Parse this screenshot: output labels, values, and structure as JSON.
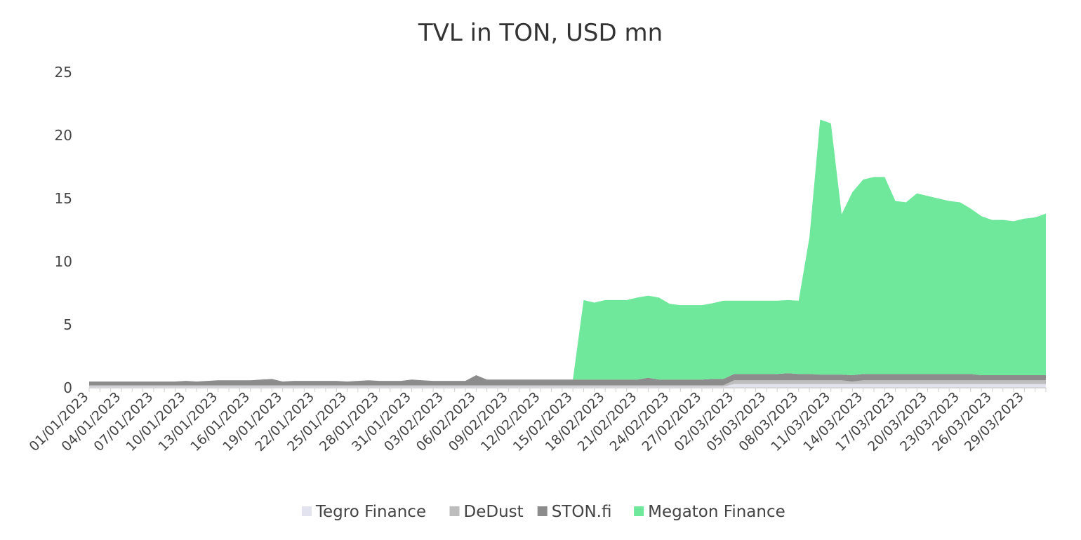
{
  "chart_data": {
    "type": "area",
    "stacked": true,
    "title": "TVL in TON, USD mn",
    "xlabel": "",
    "ylabel": "",
    "ylim": [
      0,
      25
    ],
    "yticks": [
      0,
      5,
      10,
      15,
      20,
      25
    ],
    "grid": false,
    "legend_position": "bottom",
    "x": [
      "01/01/2023",
      "02/01/2023",
      "03/01/2023",
      "04/01/2023",
      "05/01/2023",
      "06/01/2023",
      "07/01/2023",
      "08/01/2023",
      "09/01/2023",
      "10/01/2023",
      "11/01/2023",
      "12/01/2023",
      "13/01/2023",
      "14/01/2023",
      "15/01/2023",
      "16/01/2023",
      "17/01/2023",
      "18/01/2023",
      "19/01/2023",
      "20/01/2023",
      "21/01/2023",
      "22/01/2023",
      "23/01/2023",
      "24/01/2023",
      "25/01/2023",
      "26/01/2023",
      "27/01/2023",
      "28/01/2023",
      "29/01/2023",
      "30/01/2023",
      "31/01/2023",
      "01/02/2023",
      "02/02/2023",
      "03/02/2023",
      "04/02/2023",
      "05/02/2023",
      "06/02/2023",
      "07/02/2023",
      "08/02/2023",
      "09/02/2023",
      "10/02/2023",
      "11/02/2023",
      "12/02/2023",
      "13/02/2023",
      "14/02/2023",
      "15/02/2023",
      "16/02/2023",
      "17/02/2023",
      "18/02/2023",
      "19/02/2023",
      "20/02/2023",
      "21/02/2023",
      "22/02/2023",
      "23/02/2023",
      "24/02/2023",
      "25/02/2023",
      "26/02/2023",
      "27/02/2023",
      "28/02/2023",
      "01/03/2023",
      "02/03/2023",
      "03/03/2023",
      "04/03/2023",
      "05/03/2023",
      "06/03/2023",
      "07/03/2023",
      "08/03/2023",
      "09/03/2023",
      "10/03/2023",
      "11/03/2023",
      "12/03/2023",
      "13/03/2023",
      "14/03/2023",
      "15/03/2023",
      "16/03/2023",
      "17/03/2023",
      "18/03/2023",
      "19/03/2023",
      "20/03/2023",
      "21/03/2023",
      "22/03/2023",
      "23/03/2023",
      "24/03/2023",
      "25/03/2023",
      "26/03/2023",
      "27/03/2023",
      "28/03/2023",
      "29/03/2023",
      "30/03/2023",
      "31/03/2023"
    ],
    "x_tick_labels": [
      "01/01/2023",
      "04/01/2023",
      "07/01/2023",
      "10/01/2023",
      "13/01/2023",
      "16/01/2023",
      "19/01/2023",
      "22/01/2023",
      "25/01/2023",
      "28/01/2023",
      "31/01/2023",
      "03/02/2023",
      "06/02/2023",
      "09/02/2023",
      "12/02/2023",
      "15/02/2023",
      "18/02/2023",
      "21/02/2023",
      "24/02/2023",
      "27/02/2023",
      "02/03/2023",
      "05/03/2023",
      "08/03/2023",
      "11/03/2023",
      "14/03/2023",
      "17/03/2023",
      "20/03/2023",
      "23/03/2023",
      "26/03/2023",
      "29/03/2023"
    ],
    "series": [
      {
        "name": "Tegro Finance",
        "color": "#e3e3ef",
        "values": [
          0.1,
          0.1,
          0.1,
          0.1,
          0.1,
          0.1,
          0.1,
          0.1,
          0.1,
          0.1,
          0.1,
          0.1,
          0.1,
          0.1,
          0.1,
          0.1,
          0.1,
          0.1,
          0.1,
          0.1,
          0.1,
          0.1,
          0.1,
          0.1,
          0.1,
          0.1,
          0.1,
          0.1,
          0.1,
          0.1,
          0.1,
          0.1,
          0.1,
          0.1,
          0.1,
          0.1,
          0.1,
          0.1,
          0.1,
          0.1,
          0.1,
          0.1,
          0.1,
          0.1,
          0.1,
          0.1,
          0.1,
          0.1,
          0.1,
          0.1,
          0.1,
          0.1,
          0.1,
          0.1,
          0.1,
          0.1,
          0.1,
          0.1,
          0.1,
          0.1,
          0.3,
          0.3,
          0.3,
          0.3,
          0.3,
          0.3,
          0.3,
          0.3,
          0.3,
          0.3,
          0.3,
          0.3,
          0.3,
          0.3,
          0.3,
          0.3,
          0.3,
          0.3,
          0.3,
          0.3,
          0.3,
          0.3,
          0.3,
          0.3,
          0.3,
          0.3,
          0.3,
          0.3,
          0.3,
          0.3
        ]
      },
      {
        "name": "DeDust",
        "color": "#bdbdbd",
        "values": [
          0.1,
          0.1,
          0.1,
          0.1,
          0.1,
          0.1,
          0.1,
          0.1,
          0.1,
          0.1,
          0.1,
          0.1,
          0.1,
          0.1,
          0.1,
          0.1,
          0.1,
          0.1,
          0.1,
          0.1,
          0.1,
          0.1,
          0.1,
          0.1,
          0.1,
          0.1,
          0.1,
          0.1,
          0.1,
          0.1,
          0.1,
          0.1,
          0.1,
          0.1,
          0.1,
          0.1,
          0.1,
          0.1,
          0.1,
          0.1,
          0.1,
          0.1,
          0.1,
          0.1,
          0.1,
          0.1,
          0.1,
          0.1,
          0.1,
          0.1,
          0.1,
          0.1,
          0.1,
          0.1,
          0.1,
          0.1,
          0.1,
          0.1,
          0.1,
          0.1,
          0.3,
          0.3,
          0.3,
          0.3,
          0.3,
          0.3,
          0.3,
          0.3,
          0.3,
          0.3,
          0.3,
          0.2,
          0.3,
          0.3,
          0.3,
          0.3,
          0.3,
          0.3,
          0.3,
          0.3,
          0.3,
          0.3,
          0.3,
          0.3,
          0.3,
          0.3,
          0.3,
          0.3,
          0.3,
          0.3
        ]
      },
      {
        "name": "STON.fi",
        "color": "#8c8c8c",
        "values": [
          0.3,
          0.3,
          0.3,
          0.3,
          0.3,
          0.3,
          0.3,
          0.3,
          0.3,
          0.35,
          0.3,
          0.35,
          0.4,
          0.4,
          0.4,
          0.4,
          0.45,
          0.5,
          0.3,
          0.35,
          0.35,
          0.35,
          0.35,
          0.35,
          0.3,
          0.35,
          0.4,
          0.35,
          0.35,
          0.35,
          0.45,
          0.4,
          0.35,
          0.35,
          0.35,
          0.35,
          0.8,
          0.45,
          0.45,
          0.45,
          0.45,
          0.45,
          0.45,
          0.45,
          0.45,
          0.45,
          0.45,
          0.45,
          0.45,
          0.45,
          0.45,
          0.45,
          0.6,
          0.45,
          0.45,
          0.45,
          0.45,
          0.45,
          0.5,
          0.5,
          0.5,
          0.5,
          0.5,
          0.5,
          0.5,
          0.55,
          0.5,
          0.5,
          0.45,
          0.45,
          0.45,
          0.5,
          0.5,
          0.5,
          0.5,
          0.5,
          0.5,
          0.5,
          0.5,
          0.5,
          0.5,
          0.5,
          0.5,
          0.4,
          0.4,
          0.4,
          0.4,
          0.4,
          0.4,
          0.4
        ]
      },
      {
        "name": "Megaton Finance",
        "color": "#6fe89c",
        "values": [
          0,
          0,
          0,
          0,
          0,
          0,
          0,
          0,
          0,
          0,
          0,
          0,
          0,
          0,
          0,
          0,
          0,
          0,
          0,
          0,
          0,
          0,
          0,
          0,
          0,
          0,
          0,
          0,
          0,
          0,
          0,
          0,
          0,
          0,
          0,
          0,
          0,
          0,
          0,
          0,
          0,
          0,
          0,
          0,
          0,
          0,
          6.3,
          6.1,
          6.3,
          6.3,
          6.3,
          6.5,
          6.5,
          6.5,
          6.0,
          5.9,
          5.9,
          5.9,
          6.0,
          6.2,
          5.8,
          5.8,
          5.8,
          5.8,
          5.8,
          5.8,
          5.8,
          10.8,
          20.2,
          19.9,
          12.7,
          14.5,
          15.4,
          15.6,
          15.6,
          13.7,
          13.6,
          14.3,
          14.1,
          13.9,
          13.7,
          13.6,
          13.1,
          12.6,
          12.3,
          12.3,
          12.2,
          12.4,
          12.5,
          12.8
        ]
      }
    ]
  }
}
